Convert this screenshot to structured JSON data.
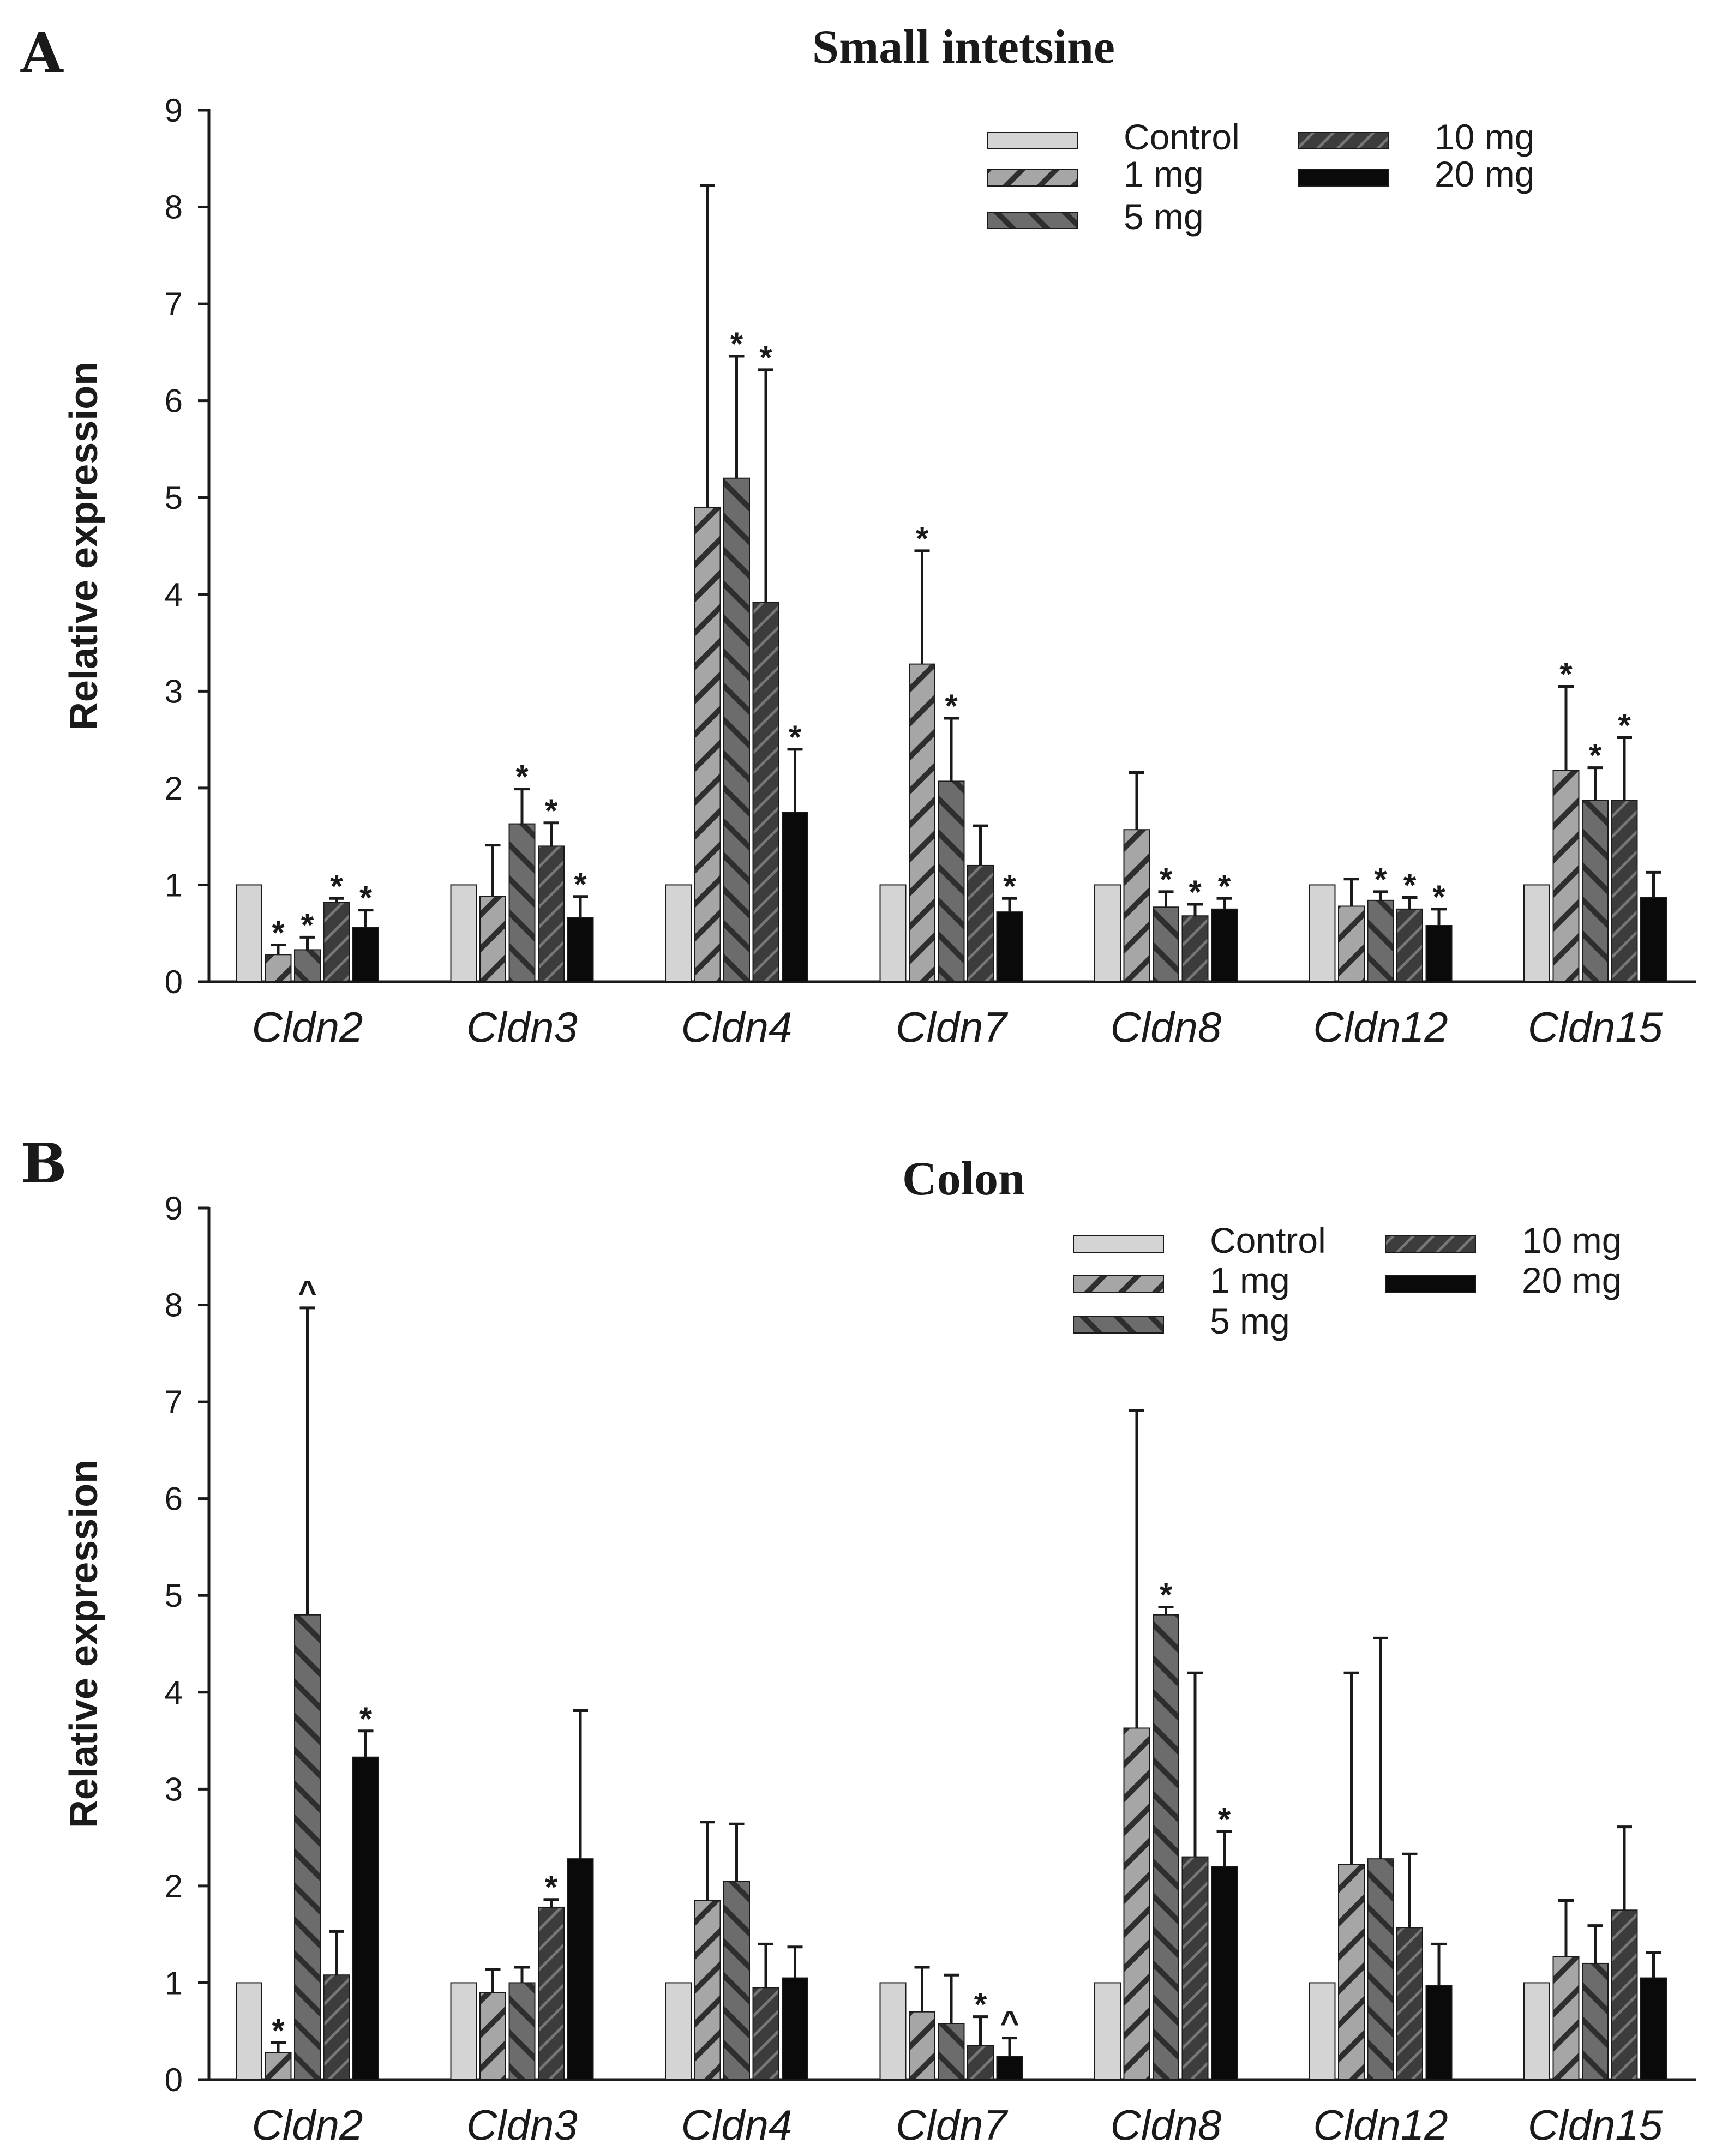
{
  "chart_data": [
    {
      "type": "bar",
      "panel": "A",
      "title": "Small intetsine",
      "ylabel": "Relative expression",
      "xlabel": "",
      "ylim": [
        0,
        9
      ],
      "yticks": [
        0,
        1,
        2,
        3,
        4,
        5,
        6,
        7,
        8,
        9
      ],
      "categories": [
        "Cldn2",
        "Cldn3",
        "Cldn4",
        "Cldn7",
        "Cldn8",
        "Cldn12",
        "Cldn15"
      ],
      "legend_columns": [
        [
          "Control",
          "1 mg",
          "5 mg"
        ],
        [
          "10 mg",
          "20 mg"
        ]
      ],
      "series": [
        {
          "name": "Control",
          "values": [
            1,
            1,
            1,
            1,
            1,
            1,
            1
          ],
          "errors": [
            0,
            0,
            0,
            0,
            0,
            0,
            0
          ],
          "marks": [
            "",
            "",
            "",
            "",
            "",
            "",
            ""
          ]
        },
        {
          "name": "1 mg",
          "values": [
            0.28,
            0.88,
            4.9,
            3.28,
            1.57,
            0.78,
            2.18
          ],
          "errors": [
            0.1,
            0.53,
            3.32,
            1.17,
            0.59,
            0.28,
            0.87
          ],
          "marks": [
            "*",
            "",
            "",
            "*",
            "",
            "",
            "*"
          ]
        },
        {
          "name": "5 mg",
          "values": [
            0.33,
            1.63,
            5.2,
            2.07,
            0.77,
            0.84,
            1.87
          ],
          "errors": [
            0.13,
            0.36,
            1.26,
            0.65,
            0.16,
            0.09,
            0.34
          ],
          "marks": [
            "*",
            "*",
            "*",
            "*",
            "*",
            "*",
            "*"
          ]
        },
        {
          "name": "10 mg",
          "values": [
            0.82,
            1.4,
            3.92,
            1.2,
            0.68,
            0.75,
            1.87
          ],
          "errors": [
            0.04,
            0.24,
            2.4,
            0.41,
            0.12,
            0.12,
            0.65
          ],
          "marks": [
            "*",
            "*",
            "*",
            "",
            "*",
            "*",
            "*"
          ]
        },
        {
          "name": "20 mg",
          "values": [
            0.56,
            0.66,
            1.75,
            0.72,
            0.75,
            0.58,
            0.87
          ],
          "errors": [
            0.18,
            0.22,
            0.65,
            0.14,
            0.11,
            0.17,
            0.26
          ],
          "marks": [
            "*",
            "*",
            "*",
            "*",
            "*",
            "*",
            ""
          ]
        }
      ]
    },
    {
      "type": "bar",
      "panel": "B",
      "title": "Colon",
      "ylabel": "Relative expression",
      "xlabel": "",
      "ylim": [
        0,
        9
      ],
      "yticks": [
        0,
        1,
        2,
        3,
        4,
        5,
        6,
        7,
        8,
        9
      ],
      "categories": [
        "Cldn2",
        "Cldn3",
        "Cldn4",
        "Cldn7",
        "Cldn8",
        "Cldn12",
        "Cldn15"
      ],
      "legend_columns": [
        [
          "Control",
          "1 mg",
          "5 mg"
        ],
        [
          "10 mg",
          "20 mg"
        ]
      ],
      "series": [
        {
          "name": "Control",
          "values": [
            1,
            1,
            1,
            1,
            1,
            1,
            1
          ],
          "errors": [
            0,
            0,
            0,
            0,
            0,
            0,
            0
          ],
          "marks": [
            "",
            "",
            "",
            "",
            "",
            "",
            ""
          ]
        },
        {
          "name": "1 mg",
          "values": [
            0.28,
            0.9,
            1.85,
            0.7,
            3.63,
            2.22,
            1.27
          ],
          "errors": [
            0.1,
            0.24,
            0.81,
            0.46,
            3.28,
            1.98,
            0.58
          ],
          "marks": [
            "*",
            "",
            "",
            "",
            "",
            "",
            ""
          ]
        },
        {
          "name": "5 mg",
          "values": [
            4.8,
            1.0,
            2.05,
            0.58,
            4.8,
            2.28,
            1.2
          ],
          "errors": [
            3.17,
            0.16,
            0.59,
            0.5,
            0.08,
            2.28,
            0.39
          ],
          "marks": [
            "^",
            "",
            "",
            "",
            "*",
            "",
            ""
          ]
        },
        {
          "name": "10 mg",
          "values": [
            1.08,
            1.78,
            0.95,
            0.35,
            2.3,
            1.57,
            1.75
          ],
          "errors": [
            0.45,
            0.08,
            0.45,
            0.3,
            1.9,
            0.76,
            0.86
          ],
          "marks": [
            "",
            "*",
            "",
            "*",
            "",
            "",
            ""
          ]
        },
        {
          "name": "20 mg",
          "values": [
            3.33,
            2.28,
            1.05,
            0.24,
            2.2,
            0.97,
            1.05
          ],
          "errors": [
            0.27,
            1.53,
            0.32,
            0.19,
            0.36,
            0.43,
            0.26
          ],
          "marks": [
            "*",
            "",
            "",
            "^",
            "*",
            "",
            ""
          ]
        }
      ]
    }
  ],
  "colors": {
    "Control": "#d4d4d4",
    "1 mg": "#a6a6a6",
    "5 mg": "#6c6c6c",
    "10 mg": "#3c3c3c",
    "20 mg": "#0a0a0a",
    "axis": "#1a1a1a"
  }
}
